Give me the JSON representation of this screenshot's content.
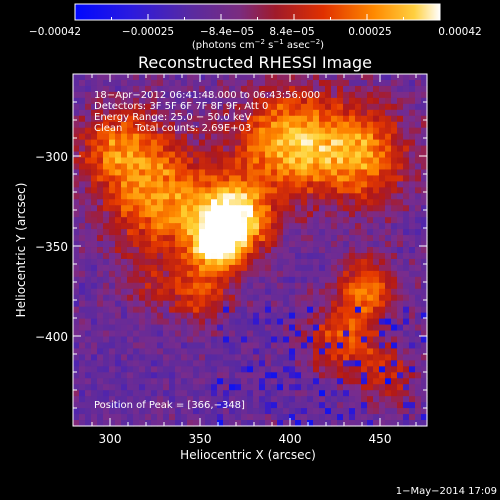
{
  "colorbar": {
    "tick_labels": [
      "−0.00042",
      "−0.00025",
      "−8.4e−05",
      "8.4e−05",
      "0.00025",
      "0.00042"
    ],
    "units_text": "(photons cm",
    "units_exp1": "−2",
    "units_mid": " s",
    "units_exp2": "−1",
    "units_mid2": " asec",
    "units_exp3": "−2",
    "units_close": ")"
  },
  "title": "Reconstructed RHESSI Image",
  "overlay": {
    "time_range": "18−Apr−2012 06:41:48.000 to 06:43:56.000",
    "detectors": "Detectors: 3F 5F 6F 7F 8F 9F, Att 0",
    "energy": "Energy Range: 25.0 − 50.0 keV",
    "method_counts": "Clean    Total counts: 2.69E+03",
    "peak": "Position of Peak = [366,−348]"
  },
  "axes": {
    "xlabel": "Heliocentric X (arcsec)",
    "ylabel": "Heliocentric Y (arcsec)",
    "x_ticks": [
      "300",
      "350",
      "400",
      "450"
    ],
    "y_ticks": [
      "−300",
      "−350",
      "−400"
    ]
  },
  "footer": {
    "timestamp": "1−May−2014 17:09"
  },
  "colors": {
    "background": "#000000",
    "text": "#ffffff",
    "colormap": [
      "#0010ff",
      "#3a1ac8",
      "#5a2aa0",
      "#7a2c8c",
      "#b01818",
      "#e63a00",
      "#ff8a00",
      "#ffd030",
      "#ffffff"
    ]
  }
}
